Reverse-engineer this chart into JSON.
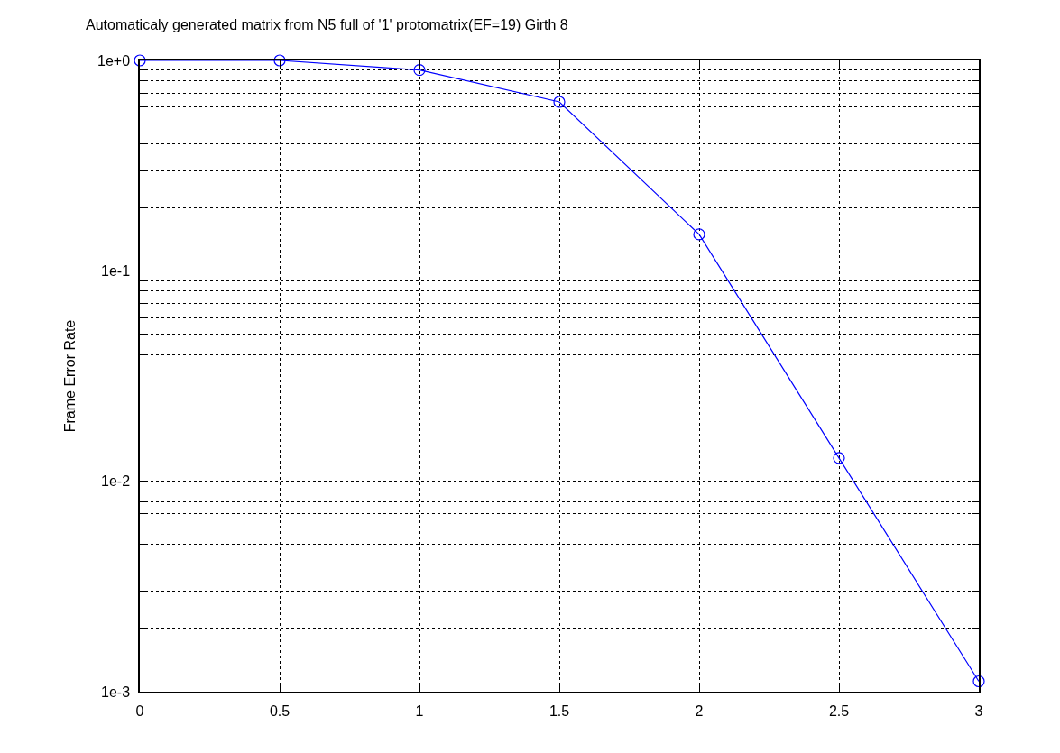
{
  "chart_data": {
    "type": "line",
    "title": "Automaticaly generated matrix from N5 full of '1' protomatrix(EF=19) Girth 8",
    "ylabel": "Frame Error Rate",
    "x": [
      0,
      0.5,
      1,
      1.5,
      2,
      2.5,
      3
    ],
    "series": [
      {
        "color": "#0000ff",
        "values": [
          1.0,
          1.0,
          0.9,
          0.635,
          0.149,
          0.0129,
          0.00112
        ]
      }
    ],
    "xlim": [
      0,
      3
    ],
    "xticks": [
      0,
      0.5,
      1,
      1.5,
      2,
      2.5,
      3
    ],
    "ylim": [
      0.001,
      1
    ],
    "log": "y",
    "yticks": [
      {
        "value": 0.001,
        "label": "1e-3"
      },
      {
        "value": 0.002,
        "label": null
      },
      {
        "value": 0.003,
        "label": null
      },
      {
        "value": 0.004,
        "label": null
      },
      {
        "value": 0.005,
        "label": null
      },
      {
        "value": 0.006,
        "label": null
      },
      {
        "value": 0.007,
        "label": null
      },
      {
        "value": 0.008,
        "label": null
      },
      {
        "value": 0.009,
        "label": null
      },
      {
        "value": 0.01,
        "label": "1e-2"
      },
      {
        "value": 0.02,
        "label": null
      },
      {
        "value": 0.03,
        "label": null
      },
      {
        "value": 0.04,
        "label": null
      },
      {
        "value": 0.05,
        "label": null
      },
      {
        "value": 0.06,
        "label": null
      },
      {
        "value": 0.07,
        "label": null
      },
      {
        "value": 0.08,
        "label": null
      },
      {
        "value": 0.09,
        "label": null
      },
      {
        "value": 0.1,
        "label": "1e-1"
      },
      {
        "value": 0.2,
        "label": null
      },
      {
        "value": 0.3,
        "label": null
      },
      {
        "value": 0.4,
        "label": null
      },
      {
        "value": 0.5,
        "label": null
      },
      {
        "value": 0.6,
        "label": null
      },
      {
        "value": 0.7,
        "label": null
      },
      {
        "value": 0.8,
        "label": null
      },
      {
        "value": 0.9,
        "label": null
      },
      {
        "value": 1,
        "label": "1e+0"
      }
    ],
    "grid": true,
    "marker": "circle",
    "line_style": "solid"
  }
}
